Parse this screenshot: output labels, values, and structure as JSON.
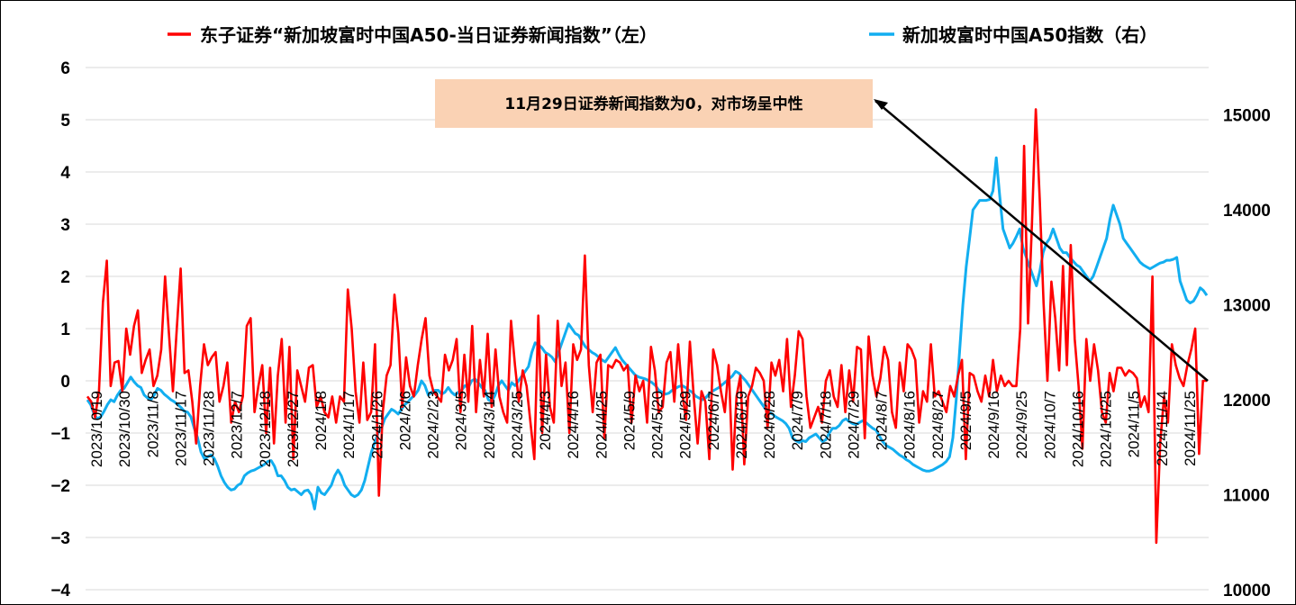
{
  "chart_data": {
    "type": "line",
    "legend_position": "top",
    "grid": "horizontal",
    "x_tick_labels": [
      "2023/10/19",
      "2023/10/30",
      "2023/11/8",
      "2023/11/17",
      "2023/11/28",
      "2023/12/7",
      "2023/12/18",
      "2023/12/27",
      "2024/1/8",
      "2024/1/17",
      "2024/1/26",
      "2024/2/6",
      "2024/2/23",
      "2024/3/5",
      "2024/3/14",
      "2024/3/25",
      "2024/4/3",
      "2024/4/16",
      "2024/4/25",
      "2024/5/9",
      "2024/5/20",
      "2024/5/29",
      "2024/6/7",
      "2024/6/19",
      "2024/6/28",
      "2024/7/9",
      "2024/7/18",
      "2024/7/29",
      "2024/8/7",
      "2024/8/16",
      "2024/8/27",
      "2024/9/5",
      "2024/9/16",
      "2024/9/25",
      "2024/10/7",
      "2024/10/16",
      "2024/10/25",
      "2024/11/5",
      "2024/11/14",
      "2024/11/25"
    ],
    "y_left": {
      "min": -4,
      "max": 6,
      "step": 1,
      "ticks": [
        "−4",
        "−3",
        "−2",
        "−1",
        "0",
        "1",
        "2",
        "3",
        "4",
        "5",
        "6"
      ]
    },
    "y_right": {
      "min": 10000,
      "max": 15500,
      "ticks": [
        "10000",
        "11000",
        "12000",
        "13000",
        "14000",
        "15000"
      ]
    },
    "series": [
      {
        "name": "东子证券“新加坡富时中国A50-当日证券新闻指数”（左）",
        "axis": "left",
        "color": "#ff0000",
        "values": [
          -0.3,
          -0.4,
          -0.7,
          -0.2,
          1.5,
          2.3,
          -0.1,
          0.35,
          0.38,
          -0.2,
          1.0,
          0.5,
          1.05,
          1.35,
          0.15,
          0.4,
          0.6,
          -0.1,
          0.1,
          0.6,
          2.0,
          0.9,
          -0.2,
          1.0,
          2.15,
          0.15,
          0.2,
          -0.4,
          -1.2,
          -0.1,
          0.7,
          0.3,
          0.45,
          0.55,
          -0.4,
          -0.1,
          0.35,
          -0.8,
          -0.4,
          -0.6,
          -0.3,
          1.05,
          1.2,
          -0.6,
          -0.1,
          0.3,
          -1.0,
          0.25,
          -1.2,
          0.1,
          0.8,
          -0.8,
          0.65,
          -1.5,
          0.2,
          -0.1,
          -0.4,
          0.25,
          0.3,
          -0.5,
          -0.3,
          -0.6,
          -0.7,
          -0.3,
          -0.8,
          -0.3,
          -0.4,
          1.75,
          1.0,
          -0.2,
          -0.8,
          0.35,
          -0.75,
          -0.6,
          0.7,
          -2.2,
          -0.6,
          0.1,
          0.3,
          1.65,
          0.9,
          -0.5,
          0.45,
          -0.1,
          -0.3,
          0.3,
          0.8,
          1.2,
          0.1,
          -0.2,
          -0.3,
          -0.4,
          0.5,
          0.2,
          0.4,
          0.8,
          -0.6,
          0.5,
          -0.4,
          1.05,
          -0.6,
          0.4,
          -0.3,
          0.9,
          -0.5,
          0.6,
          -0.3,
          -0.6,
          -0.8,
          1.15,
          0.3,
          -0.4,
          0.2,
          -0.1,
          -0.8,
          -1.5,
          1.25,
          -1.0,
          0.5,
          -0.5,
          -0.8,
          1.15,
          -0.1,
          0.35,
          -1.0,
          0.7,
          0.4,
          0.6,
          2.4,
          0.3,
          -0.6,
          0.35,
          0.5,
          -1.1,
          0.3,
          0.25,
          0.4,
          0.35,
          0.2,
          0.3,
          -0.8,
          0.1,
          -0.2,
          0.0,
          -0.8,
          0.65,
          0.2,
          -0.6,
          -0.5,
          0.35,
          0.55,
          -0.4,
          0.7,
          -0.2,
          -0.75,
          0.75,
          -0.3,
          -1.2,
          -0.2,
          -0.4,
          -1.5,
          0.6,
          0.3,
          -0.2,
          -0.6,
          0.3,
          -1.7,
          -0.3,
          0.1,
          -1.6,
          -0.3,
          -0.1,
          0.25,
          0.15,
          0.0,
          -0.9,
          0.35,
          0.1,
          0.4,
          -0.2,
          0.8,
          -0.5,
          0.1,
          0.95,
          0.8,
          -0.3,
          -0.9,
          -0.7,
          -0.5,
          -0.8,
          0.0,
          0.2,
          -0.3,
          -0.5,
          0.3,
          -0.6,
          0.2,
          -0.4,
          0.65,
          0.6,
          -1.1,
          0.85,
          0.1,
          -0.3,
          0.05,
          0.65,
          0.4,
          -0.6,
          -0.9,
          0.35,
          -0.2,
          0.7,
          0.6,
          0.4,
          -0.8,
          -0.2,
          -0.4,
          0.7,
          -0.3,
          -0.2,
          -0.4,
          -0.6,
          -0.1,
          -0.3,
          0.1,
          0.4,
          -1.5,
          0.15,
          0.1,
          -0.2,
          -0.4,
          0.1,
          -0.3,
          0.4,
          -0.2,
          0.1,
          -0.1,
          0.0,
          -0.1,
          -0.1,
          1.0,
          4.5,
          1.1,
          3.0,
          5.2,
          3.5,
          1.5,
          0.0,
          1.9,
          1.2,
          0.2,
          2.2,
          0.3,
          2.6,
          0.8,
          -0.1,
          -1.3,
          0.8,
          0.0,
          0.7,
          0.2,
          -0.6,
          -0.8,
          0.15,
          -0.2,
          0.25,
          0.25,
          0.1,
          0.2,
          0.15,
          0.05,
          -0.5,
          -0.3,
          -0.6,
          2.0,
          -3.1,
          -1.2,
          -0.3,
          -0.8,
          0.7,
          0.3,
          0.05,
          -0.1,
          0.3,
          0.6,
          1.0,
          -1.4,
          0.0,
          0.0
        ]
      },
      {
        "name": "新加坡富时中国A50指数（右）",
        "axis": "right",
        "color": "#12aef0",
        "values": [
          12000,
          11950,
          11850,
          11800,
          11820,
          11880,
          11950,
          12000,
          11980,
          12050,
          12100,
          12120,
          12180,
          12240,
          12190,
          12150,
          12130,
          12050,
          12020,
          12000,
          12050,
          12120,
          12100,
          12060,
          12030,
          12000,
          11980,
          11950,
          11920,
          11880,
          11870,
          11820,
          11700,
          11600,
          11450,
          11380,
          11400,
          11420,
          11380,
          11300,
          11200,
          11130,
          11080,
          11050,
          11060,
          11100,
          11120,
          11200,
          11230,
          11250,
          11260,
          11280,
          11300,
          11320,
          11350,
          11360,
          11300,
          11200,
          11200,
          11150,
          11080,
          11050,
          11060,
          11030,
          11000,
          11040,
          11050,
          11000,
          10850,
          11080,
          11020,
          11000,
          11050,
          11100,
          11200,
          11260,
          11200,
          11100,
          11050,
          11000,
          10980,
          11000,
          11050,
          11150,
          11300,
          11450,
          11550,
          11650,
          11700,
          11800,
          11850,
          11900,
          11880,
          11850,
          11900,
          11950,
          11980,
          12020,
          12050,
          12100,
          12200,
          12150,
          12050,
          12080,
          12100,
          12100,
          12060,
          12080,
          12130,
          12080,
          12050,
          12080,
          12100,
          12150,
          12130,
          12200,
          12220,
          12180,
          12130,
          12100,
          12000,
          11980,
          12050,
          12150,
          12200,
          12150,
          12100,
          12180,
          12150,
          12200,
          12250,
          12300,
          12350,
          12500,
          12600,
          12580,
          12550,
          12500,
          12480,
          12450,
          12400,
          12500,
          12600,
          12700,
          12800,
          12750,
          12700,
          12680,
          12620,
          12560,
          12530,
          12500,
          12480,
          12450,
          12420,
          12400,
          12450,
          12500,
          12550,
          12480,
          12420,
          12380,
          12340,
          12300,
          12260,
          12240,
          12230,
          12220,
          12200,
          12180,
          12150,
          12100,
          12080,
          12060,
          12070,
          12100,
          12120,
          12140,
          12150,
          12130,
          12100,
          12080,
          12040,
          12020,
          12000,
          12020,
          12060,
          12090,
          12110,
          12130,
          12160,
          12190,
          12220,
          12250,
          12300,
          12280,
          12240,
          12200,
          12150,
          12100,
          12050,
          12000,
          11950,
          11900,
          11870,
          11850,
          11820,
          11800,
          11780,
          11750,
          11700,
          11600,
          11570,
          11550,
          11570,
          11560,
          11600,
          11620,
          11640,
          11600,
          11560,
          11580,
          11650,
          11700,
          11700,
          11730,
          11780,
          11800,
          11770,
          11750,
          11740,
          11760,
          11780,
          11760,
          11730,
          11700,
          11680,
          11620,
          11560,
          11520,
          11500,
          11480,
          11450,
          11420,
          11400,
          11370,
          11350,
          11320,
          11300,
          11280,
          11260,
          11250,
          11250,
          11260,
          11280,
          11300,
          11320,
          11350,
          11400,
          11600,
          12000,
          12500,
          13000,
          13400,
          13700,
          14000,
          14050,
          14100,
          14100,
          14100,
          14110,
          14200,
          14550,
          14150,
          13800,
          13700,
          13600,
          13650,
          13720,
          13800,
          13600,
          13500,
          13400,
          13300,
          13200,
          13350,
          13550,
          13650,
          13700,
          13800,
          13700,
          13600,
          13550,
          13550,
          13500,
          13460,
          13420,
          13400,
          13350,
          13300,
          13250,
          13300,
          13400,
          13500,
          13600,
          13700,
          13900,
          14050,
          13950,
          13850,
          13700,
          13650,
          13600,
          13550,
          13500,
          13450,
          13420,
          13400,
          13380,
          13400,
          13420,
          13440,
          13450,
          13470,
          13470,
          13480,
          13500,
          13250,
          13150,
          13050,
          13020,
          13040,
          13100,
          13180,
          13150,
          13100
        ]
      }
    ],
    "annotation": {
      "text": "11月29日证券新闻指数为0，对市场呈中性"
    }
  }
}
